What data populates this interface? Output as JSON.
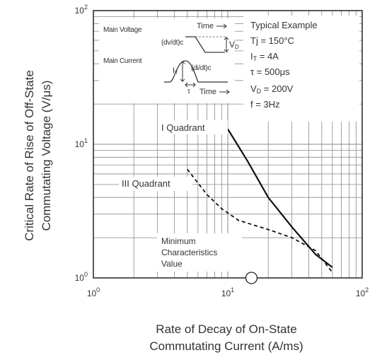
{
  "chart_data": {
    "type": "line",
    "xscale": "log",
    "yscale": "log",
    "xlim": [
      1,
      100
    ],
    "ylim": [
      1,
      100
    ],
    "grid": true,
    "xlabel": [
      "Rate of Decay of On-State",
      "Commutating Current  (A/ms)"
    ],
    "ylabel": [
      "Critical Rate of Rise of Off-State",
      "Commutating Voltage  (V/μs)"
    ],
    "x_ticks": [
      {
        "base": "10",
        "exp": "0"
      },
      {
        "base": "10",
        "exp": "1"
      },
      {
        "base": "10",
        "exp": "2"
      }
    ],
    "y_ticks": [
      {
        "base": "10",
        "exp": "0"
      },
      {
        "base": "10",
        "exp": "1"
      },
      {
        "base": "10",
        "exp": "2"
      }
    ],
    "series": [
      {
        "name": "I Quadrant",
        "style": "solid",
        "x": [
          10,
          14,
          20,
          30,
          45,
          60
        ],
        "y": [
          13,
          7.5,
          4.0,
          2.4,
          1.5,
          1.2
        ]
      },
      {
        "name": "III Quadrant",
        "style": "dashed",
        "x": [
          5,
          7,
          9,
          12,
          20,
          30,
          45,
          60
        ],
        "y": [
          6.5,
          4.2,
          3.3,
          2.7,
          2.3,
          2.0,
          1.6,
          1.1
        ]
      }
    ],
    "annotations": {
      "i_quadrant": "I Quadrant",
      "iii_quadrant": "III Quadrant",
      "minimum": [
        "Minimum",
        "Characteristics",
        "Value"
      ],
      "conditions": [
        "Typical Example",
        "Tj = 150°C",
        "I",
        "T",
        " = 4A",
        "τ = 500μs",
        "V",
        "D",
        " = 200V",
        "f = 3Hz"
      ],
      "inset": {
        "main_voltage": "Main Voltage",
        "main_current": "Main Current",
        "time": "Time",
        "dvdt": "(dv/dt)c",
        "didt": "(di/dt)c",
        "vd": "V",
        "vd_sub": "D",
        "it": "I",
        "it_sub": "T",
        "tau": "τ"
      }
    },
    "marker": {
      "type": "open-circle",
      "x": 15,
      "y": 1
    }
  }
}
